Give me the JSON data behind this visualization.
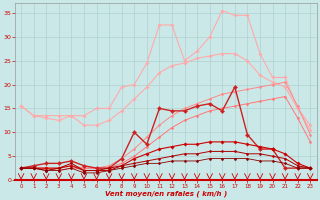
{
  "bg_color": "#cbe8e8",
  "grid_color": "#b0d0d0",
  "xlabel": "Vent moyen/en rafales ( km/h )",
  "xlabel_color": "#cc0000",
  "ylabel_color": "#cc0000",
  "xlim": [
    -0.5,
    23.5
  ],
  "ylim": [
    0,
    37
  ],
  "yticks": [
    0,
    5,
    10,
    15,
    20,
    25,
    30,
    35
  ],
  "xticks": [
    0,
    1,
    2,
    3,
    4,
    5,
    6,
    7,
    8,
    9,
    10,
    11,
    12,
    13,
    14,
    15,
    16,
    17,
    18,
    19,
    20,
    21,
    22,
    23
  ],
  "x": [
    0,
    1,
    2,
    3,
    4,
    5,
    6,
    7,
    8,
    9,
    10,
    11,
    12,
    13,
    14,
    15,
    16,
    17,
    18,
    19,
    20,
    21,
    22,
    23
  ],
  "series": [
    {
      "color": "#ffaaaa",
      "marker": "D",
      "markersize": 1.8,
      "linewidth": 0.8,
      "y": [
        15.5,
        13.5,
        13.5,
        13.5,
        13.5,
        13.5,
        15.0,
        15.0,
        19.5,
        20.0,
        24.5,
        32.5,
        32.5,
        25.0,
        27.0,
        30.0,
        35.5,
        34.5,
        34.5,
        26.5,
        21.5,
        21.5,
        15.0,
        11.5
      ]
    },
    {
      "color": "#ffaaaa",
      "marker": "D",
      "markersize": 1.8,
      "linewidth": 0.8,
      "y": [
        15.5,
        13.5,
        13.0,
        12.5,
        13.5,
        11.5,
        11.5,
        12.5,
        14.5,
        17.0,
        19.5,
        22.5,
        24.0,
        24.5,
        25.5,
        26.0,
        26.5,
        26.5,
        25.0,
        22.0,
        20.5,
        19.5,
        15.0,
        10.5
      ]
    },
    {
      "color": "#ff8888",
      "marker": "D",
      "markersize": 1.5,
      "linewidth": 0.7,
      "y": [
        2.5,
        2.5,
        2.5,
        2.5,
        3.0,
        2.5,
        2.5,
        3.0,
        4.5,
        6.5,
        9.0,
        11.5,
        13.5,
        15.0,
        16.0,
        17.0,
        18.0,
        18.5,
        19.0,
        19.5,
        20.0,
        20.5,
        15.5,
        9.5
      ]
    },
    {
      "color": "#ff7777",
      "marker": "D",
      "markersize": 1.5,
      "linewidth": 0.7,
      "y": [
        2.5,
        2.5,
        2.5,
        2.0,
        2.5,
        2.5,
        2.5,
        2.5,
        3.5,
        5.0,
        7.0,
        9.0,
        11.0,
        12.5,
        13.5,
        14.5,
        15.0,
        15.5,
        16.0,
        16.5,
        17.0,
        17.5,
        13.0,
        8.0
      ]
    },
    {
      "color": "#cc2222",
      "marker": "D",
      "markersize": 2.2,
      "linewidth": 1.0,
      "y": [
        2.5,
        3.0,
        3.5,
        3.5,
        4.0,
        3.0,
        2.5,
        2.5,
        4.5,
        10.0,
        7.5,
        15.0,
        14.5,
        14.5,
        15.5,
        16.0,
        14.5,
        19.5,
        9.5,
        6.5,
        6.5,
        2.5,
        2.5,
        2.5
      ]
    },
    {
      "color": "#cc0000",
      "marker": "D",
      "markersize": 1.8,
      "linewidth": 0.8,
      "y": [
        2.5,
        2.5,
        2.5,
        2.5,
        3.0,
        2.0,
        2.0,
        2.0,
        3.0,
        4.5,
        5.5,
        6.5,
        7.0,
        7.5,
        7.5,
        8.0,
        8.0,
        8.0,
        7.5,
        7.0,
        6.5,
        5.5,
        3.5,
        2.5
      ]
    },
    {
      "color": "#aa0000",
      "marker": "D",
      "markersize": 1.5,
      "linewidth": 0.7,
      "y": [
        2.5,
        2.5,
        2.0,
        2.5,
        3.5,
        2.0,
        2.0,
        2.5,
        3.0,
        3.5,
        4.0,
        4.5,
        5.0,
        5.5,
        5.5,
        6.0,
        6.0,
        6.0,
        5.5,
        5.5,
        5.0,
        4.5,
        3.0,
        2.5
      ]
    },
    {
      "color": "#880000",
      "marker": "D",
      "markersize": 1.5,
      "linewidth": 0.6,
      "y": [
        2.5,
        2.5,
        2.0,
        2.0,
        2.5,
        1.5,
        1.5,
        2.0,
        2.5,
        3.0,
        3.5,
        3.5,
        4.0,
        4.0,
        4.0,
        4.5,
        4.5,
        4.5,
        4.5,
        4.0,
        4.0,
        3.5,
        2.5,
        2.5
      ]
    }
  ]
}
